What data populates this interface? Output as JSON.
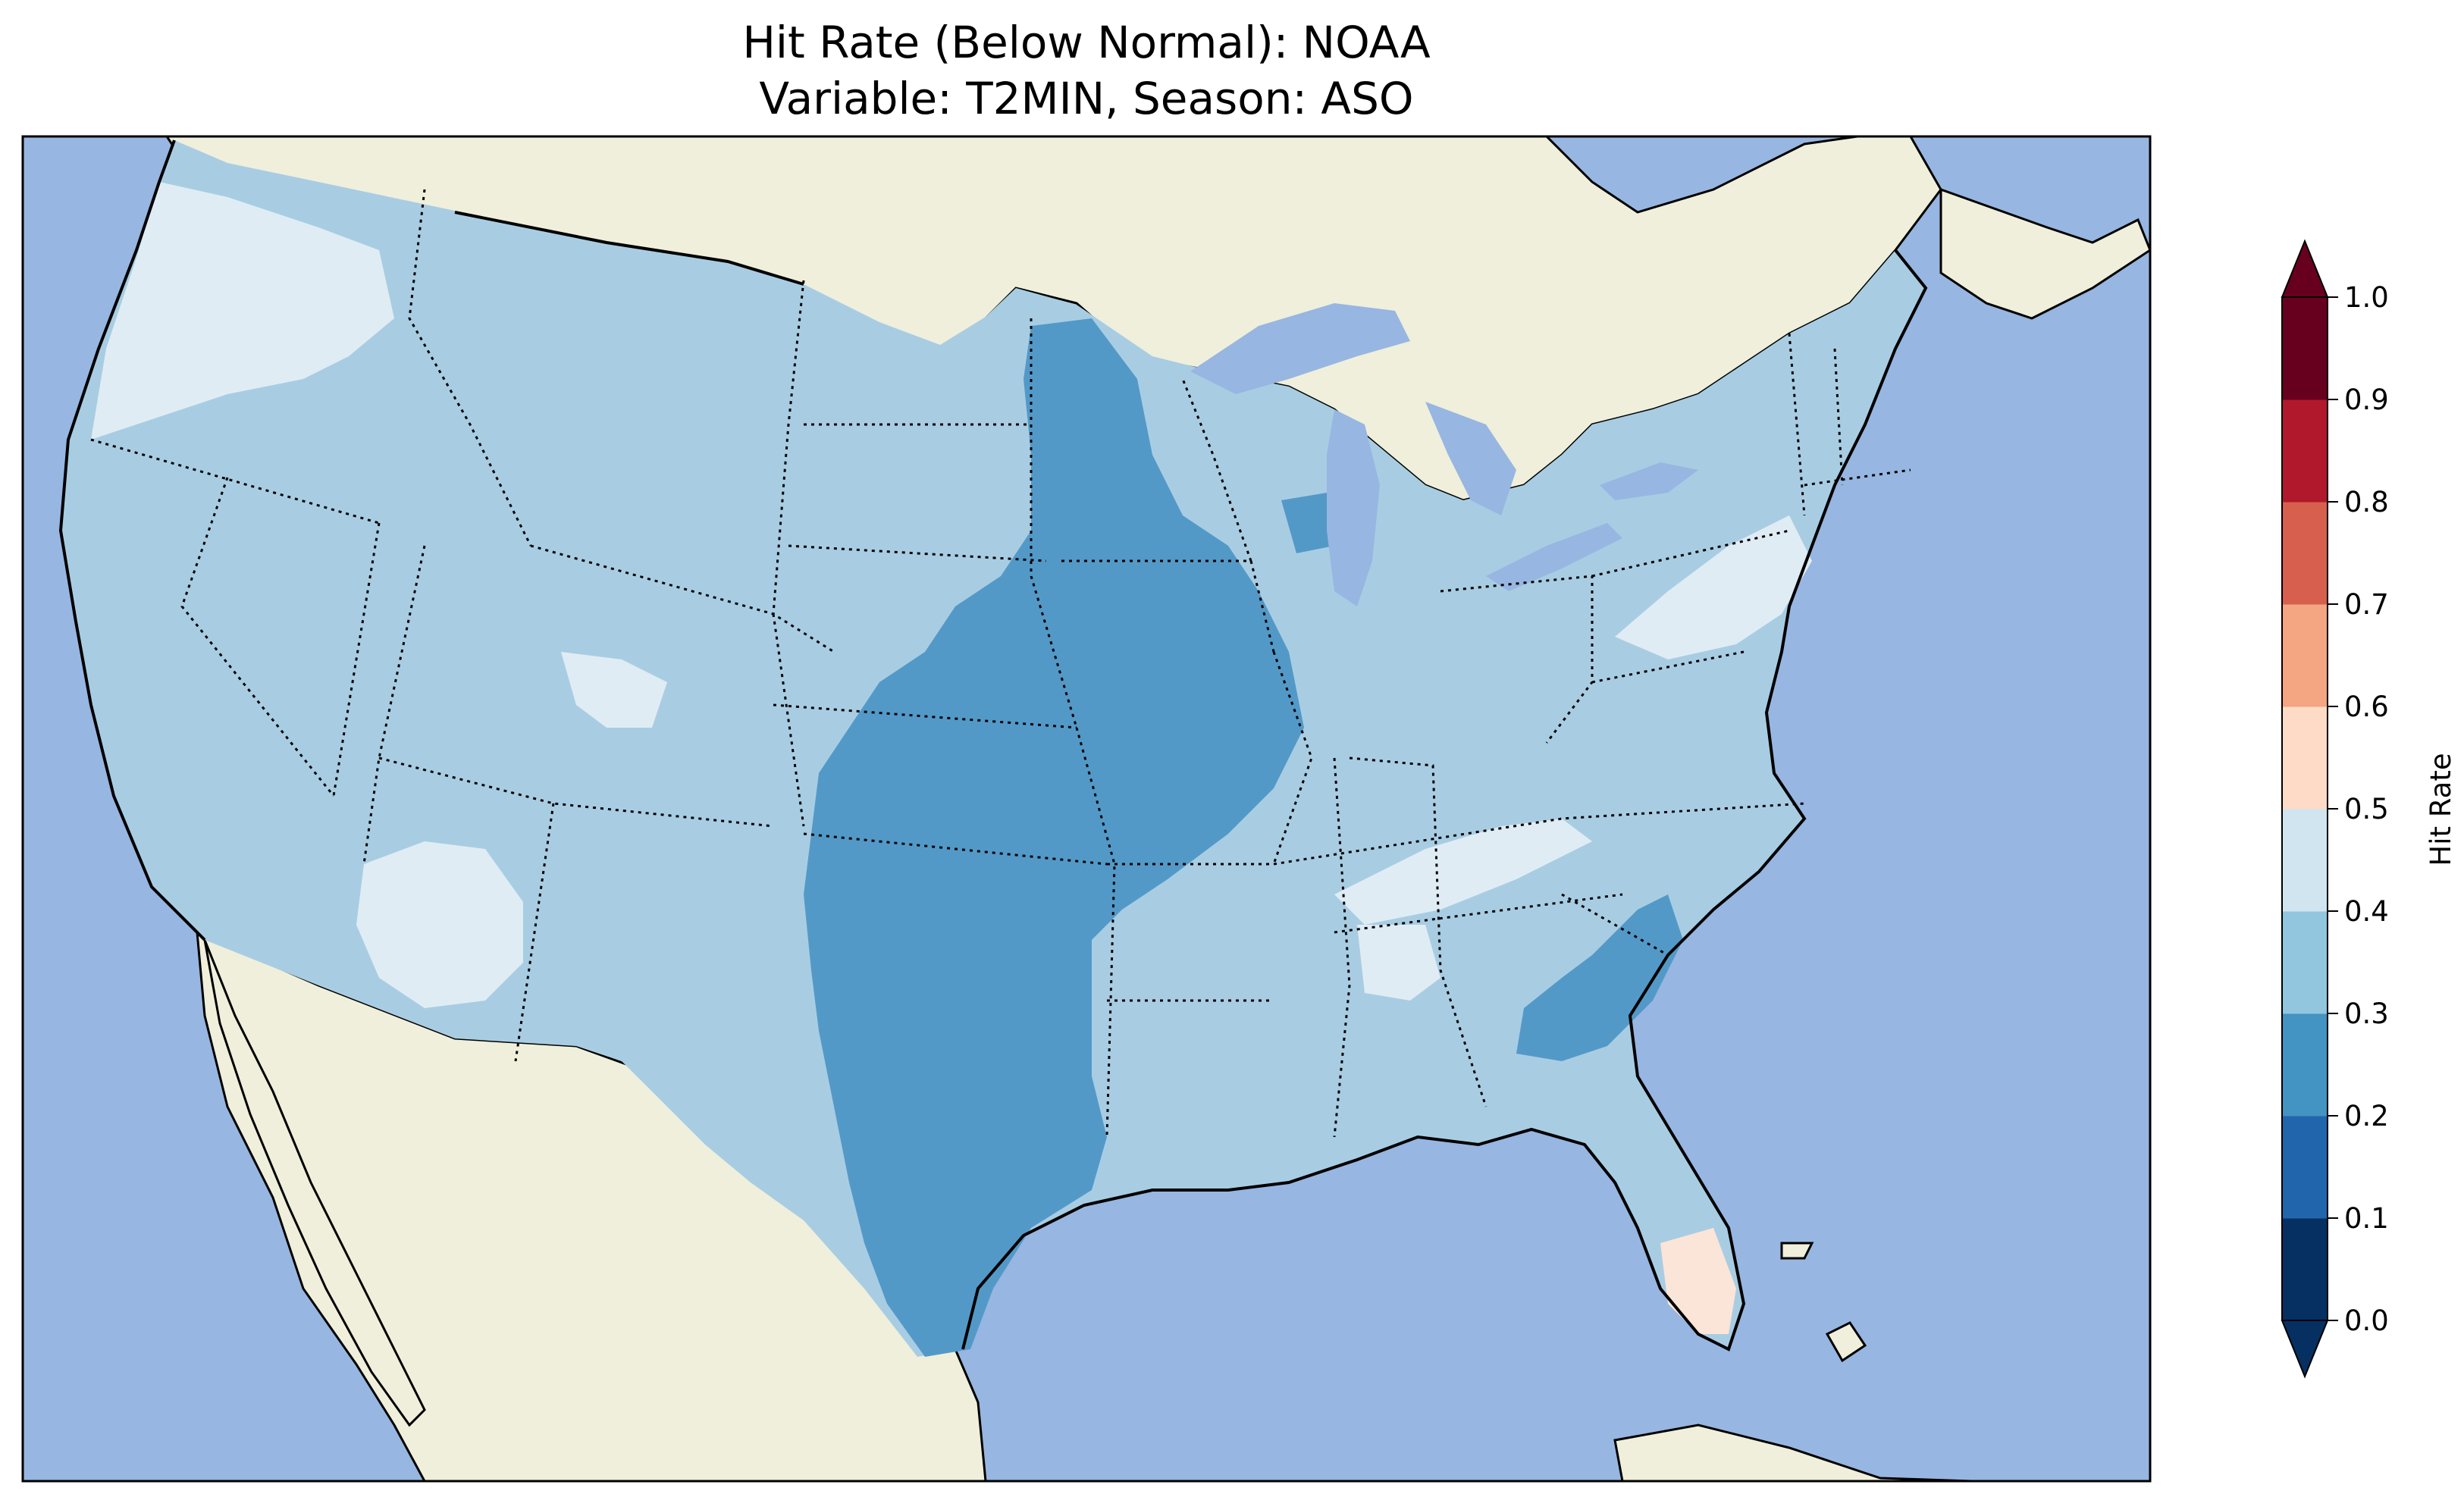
{
  "title": {
    "line1": "Hit Rate (Below Normal): NOAA",
    "line2": "Variable: T2MIN, Season: ASO"
  },
  "map": {
    "colors": {
      "ocean": "#97b6e1",
      "land": "#efefdb",
      "lake": "#97b6e1"
    },
    "regions": [
      {
        "name": "west-coast-band",
        "value": 0.45
      },
      {
        "name": "great-basin",
        "value": 0.35
      },
      {
        "name": "four-corners-pocket",
        "value": 0.45
      },
      {
        "name": "central-plains-corridor",
        "value": 0.25
      },
      {
        "name": "texas",
        "value": 0.25
      },
      {
        "name": "georgia-pocket",
        "value": 0.25
      },
      {
        "name": "tennessee-band",
        "value": 0.45
      },
      {
        "name": "northeast-band",
        "value": 0.45
      },
      {
        "name": "south-florida",
        "value": 0.55
      }
    ]
  },
  "colorbar": {
    "label": "Hit Rate",
    "ticks": [
      "0.0",
      "0.1",
      "0.2",
      "0.3",
      "0.4",
      "0.5",
      "0.6",
      "0.7",
      "0.8",
      "0.9",
      "1.0"
    ],
    "colors": [
      "#053061",
      "#2166ac",
      "#4393c3",
      "#92c5de",
      "#d1e5f0",
      "#fddbc7",
      "#f4a582",
      "#d6604d",
      "#b2182b",
      "#67001f"
    ],
    "under_color": "#053061",
    "over_color": "#67001f"
  },
  "chart_data": {
    "type": "heatmap",
    "title": "Hit Rate (Below Normal): NOAA\nVariable: T2MIN, Season: ASO",
    "colorbar_label": "Hit Rate",
    "range": [
      0.0,
      1.0
    ],
    "levels": [
      0.0,
      0.1,
      0.2,
      0.3,
      0.4,
      0.5,
      0.6,
      0.7,
      0.8,
      0.9,
      1.0
    ],
    "extend": "both",
    "dominant_value_range": [
      0.3,
      0.4
    ]
  }
}
